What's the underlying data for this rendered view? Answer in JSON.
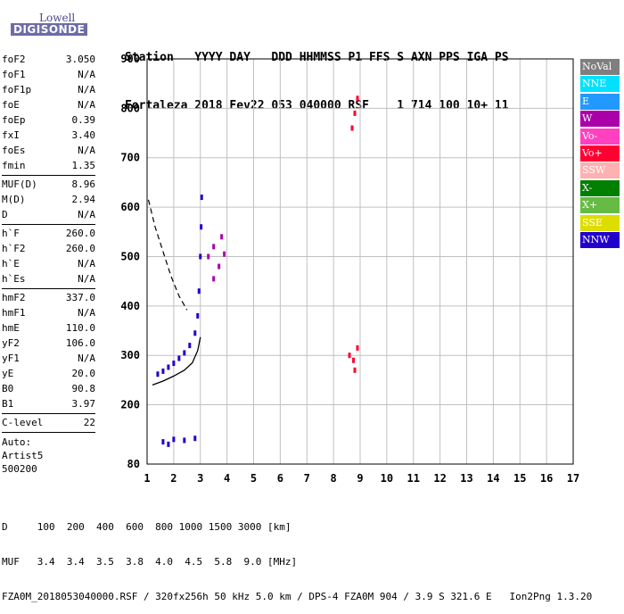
{
  "logo": {
    "line1": "Lowell",
    "line2": "DIGISONDE"
  },
  "header": {
    "labels": [
      "Station",
      "YYYY",
      "DAY",
      "DDD",
      "HHMMSS",
      "P1",
      "FFS",
      "S",
      "AXN",
      "PPS",
      "IGA",
      "PS"
    ],
    "values": [
      "Fortaleza",
      "2018",
      "Fev22",
      "053",
      "040000",
      "RSF",
      "",
      "1",
      "714",
      "100",
      "10+",
      "11"
    ]
  },
  "params": {
    "groups": [
      [
        [
          "foF2",
          "3.050"
        ],
        [
          "foF1",
          "N/A"
        ],
        [
          "foF1p",
          "N/A"
        ],
        [
          "foE",
          "N/A"
        ],
        [
          "foEp",
          "0.39"
        ],
        [
          "fxI",
          "3.40"
        ],
        [
          "foEs",
          "N/A"
        ],
        [
          "fmin",
          "1.35"
        ]
      ],
      [
        [
          "MUF(D)",
          "8.96"
        ],
        [
          "M(D)",
          "2.94"
        ],
        [
          "D",
          "N/A"
        ]
      ],
      [
        [
          "h`F",
          "260.0"
        ],
        [
          "h`F2",
          "260.0"
        ],
        [
          "h`E",
          "N/A"
        ],
        [
          "h`Es",
          "N/A"
        ]
      ],
      [
        [
          "hmF2",
          "337.0"
        ],
        [
          "hmF1",
          "N/A"
        ],
        [
          "hmE",
          "110.0"
        ],
        [
          "yF2",
          "106.0"
        ],
        [
          "yF1",
          "N/A"
        ],
        [
          "yE",
          "20.0"
        ],
        [
          "B0",
          "90.8"
        ],
        [
          "B1",
          "3.97"
        ]
      ],
      [
        [
          "C-level",
          "22"
        ]
      ]
    ],
    "auto": [
      "Auto:",
      "Artist5",
      "500200"
    ]
  },
  "legend": [
    {
      "label": "NoVal",
      "color": "#7f7f7f"
    },
    {
      "label": "NNE",
      "color": "#00e0ff"
    },
    {
      "label": "E",
      "color": "#2299ff"
    },
    {
      "label": "W",
      "color": "#aa00aa"
    },
    {
      "label": "Vo-",
      "color": "#ff40c0"
    },
    {
      "label": "Vo+",
      "color": "#ff0033"
    },
    {
      "label": "SSW",
      "color": "#ffb0b0"
    },
    {
      "label": "X-",
      "color": "#007f00"
    },
    {
      "label": "X+",
      "color": "#66bb44"
    },
    {
      "label": "SSE",
      "color": "#dddd00"
    },
    {
      "label": "NNW",
      "color": "#2200cc"
    }
  ],
  "footer": {
    "line1": "D     100  200  400  600  800 1000 1500 3000 [km]",
    "line2": "MUF   3.4  3.4  3.5  3.8  4.0  4.5  5.8  9.0 [MHz]",
    "line3": "FZA0M_2018053040000.RSF / 320fx256h 50 kHz 5.0 km / DPS-4 FZA0M 904 / 3.9 S 321.6 E   Ion2Png 1.3.20"
  },
  "chart_data": {
    "type": "scatter",
    "xlabel": "",
    "ylabel": "",
    "xlim": [
      1,
      17
    ],
    "ylim": [
      80,
      900
    ],
    "x_ticks": [
      1,
      2,
      3,
      4,
      5,
      6,
      7,
      8,
      9,
      10,
      11,
      12,
      13,
      14,
      15,
      16,
      17
    ],
    "y_ticks": [
      80,
      200,
      300,
      400,
      500,
      600,
      700,
      800,
      900
    ],
    "grid": true,
    "traces": [
      {
        "name": "O-trace F layer",
        "color": "#2200cc",
        "points": [
          [
            1.4,
            262
          ],
          [
            1.6,
            268
          ],
          [
            1.8,
            276
          ],
          [
            2.0,
            284
          ],
          [
            2.2,
            294
          ],
          [
            2.4,
            305
          ],
          [
            2.6,
            320
          ],
          [
            2.8,
            345
          ],
          [
            2.9,
            380
          ],
          [
            2.95,
            430
          ],
          [
            3.0,
            500
          ],
          [
            3.03,
            560
          ],
          [
            3.05,
            620
          ]
        ]
      },
      {
        "name": "Oblique F cluster",
        "color": "#aa00aa",
        "points": [
          [
            3.3,
            500
          ],
          [
            3.5,
            520
          ],
          [
            3.7,
            480
          ],
          [
            3.9,
            505
          ],
          [
            3.5,
            455
          ],
          [
            3.8,
            540
          ]
        ]
      },
      {
        "name": "Spread near 8.8 MHz",
        "color": "#ff0033",
        "points": [
          [
            8.6,
            300
          ],
          [
            8.75,
            290
          ],
          [
            8.9,
            315
          ],
          [
            8.8,
            790
          ],
          [
            8.7,
            760
          ],
          [
            8.9,
            820
          ],
          [
            8.8,
            270
          ]
        ]
      },
      {
        "name": "Low E echoes",
        "color": "#2200cc",
        "points": [
          [
            1.6,
            125
          ],
          [
            2.0,
            130
          ],
          [
            2.4,
            128
          ],
          [
            2.8,
            132
          ],
          [
            1.8,
            120
          ]
        ]
      }
    ],
    "profile_curve": [
      [
        1.2,
        240
      ],
      [
        1.6,
        248
      ],
      [
        2.0,
        258
      ],
      [
        2.4,
        270
      ],
      [
        2.7,
        285
      ],
      [
        2.9,
        310
      ],
      [
        3.0,
        337
      ]
    ],
    "dashed_curve": [
      [
        1.05,
        615
      ],
      [
        1.3,
        560
      ],
      [
        1.6,
        510
      ],
      [
        1.9,
        460
      ],
      [
        2.2,
        420
      ],
      [
        2.5,
        392
      ]
    ]
  }
}
